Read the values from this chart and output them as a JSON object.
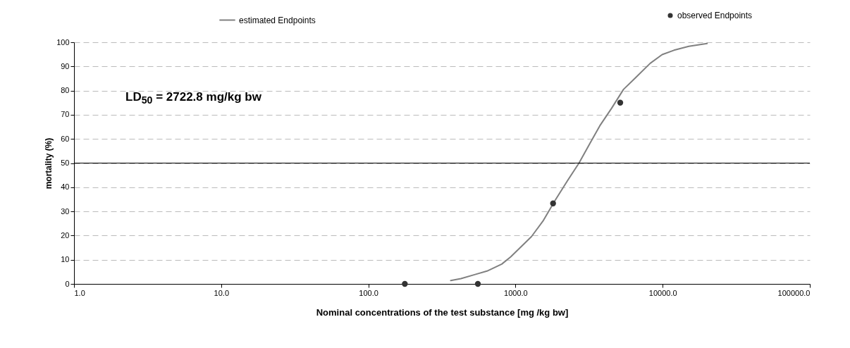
{
  "chart_data": {
    "type": "line",
    "xlabel": "Nominal concentrations of the test substance [mg /kg bw]",
    "ylabel": "mortality (%)",
    "log": "x",
    "grid": "y",
    "legend": "top",
    "xlim": [
      1,
      100000
    ],
    "xticks": [
      {
        "value": 1,
        "label": "1.0"
      },
      {
        "value": 10,
        "label": "10.0"
      },
      {
        "value": 100,
        "label": "100.0"
      },
      {
        "value": 1000,
        "label": "1000.0"
      },
      {
        "value": 10000,
        "label": "10000.0"
      },
      {
        "value": 100000,
        "label": "100000.0"
      }
    ],
    "ylim": [
      0,
      100
    ],
    "yticks": [
      0,
      10,
      20,
      30,
      40,
      50,
      60,
      70,
      80,
      90,
      100
    ],
    "annotations": [
      "LD$_{50}$ = 2722.8 mg/kg bw"
    ],
    "ref_lines": [
      {
        "axis": "y",
        "value": 50,
        "color": "#000000"
      }
    ],
    "series": [
      {
        "name": "estimated Endpoints",
        "type": "line",
        "color": "#808080",
        "line_style": "solid",
        "marker": "none",
        "x": [
          363,
          426,
          532,
          640,
          807,
          929,
          1067,
          1285,
          1548,
          1864,
          2244,
          2700,
          3250,
          3738,
          4500,
          5420,
          6530,
          8230,
          9920,
          11930,
          15050,
          20050
        ],
        "values": [
          1.4,
          2.2,
          3.9,
          5.3,
          8.2,
          11.2,
          14.8,
          19.6,
          26.3,
          34.7,
          42.5,
          50,
          58.8,
          65.4,
          72.7,
          80.5,
          85.3,
          91.3,
          94.9,
          96.7,
          98.3,
          99.5
        ]
      },
      {
        "name": "observed Endpoints",
        "type": "scatter",
        "color": "#333333",
        "marker": "circle",
        "x": [
          177,
          555,
          1800,
          5150
        ],
        "values": [
          0,
          0,
          33.3,
          75
        ]
      }
    ]
  }
}
